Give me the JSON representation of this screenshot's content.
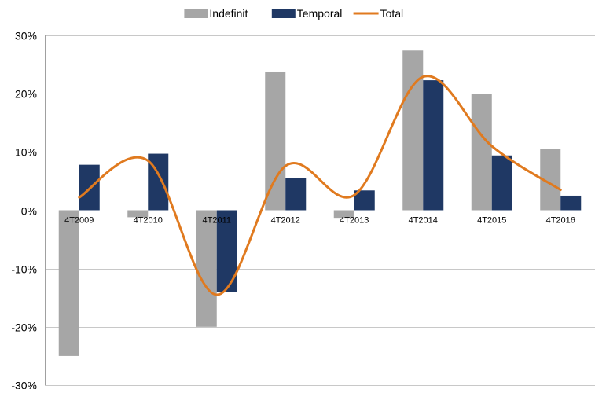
{
  "chart_data": {
    "type": "bar",
    "categories": [
      "4T2009",
      "4T2010",
      "4T2011",
      "4T2012",
      "4T2013",
      "4T2014",
      "4T2015",
      "4T2016"
    ],
    "series": [
      {
        "name": "Indefinit",
        "kind": "bar",
        "color": "#a6a6a6",
        "values": [
          -25.0,
          -1.2,
          -20.0,
          23.8,
          -1.3,
          27.4,
          20.0,
          10.5
        ]
      },
      {
        "name": "Temporal",
        "kind": "bar",
        "color": "#1f3864",
        "values": [
          7.8,
          9.7,
          -14.0,
          5.5,
          3.4,
          22.3,
          9.4,
          2.5
        ]
      },
      {
        "name": "Total",
        "kind": "line",
        "color": "#e07a1f",
        "values": [
          2.2,
          8.5,
          -14.5,
          7.6,
          2.6,
          22.9,
          11.0,
          3.5
        ]
      }
    ],
    "ylim": [
      -30,
      30
    ],
    "yticks": [
      -30,
      -20,
      -10,
      0,
      10,
      20,
      30
    ],
    "ytick_labels": [
      "-30%",
      "-20%",
      "-10%",
      "0%",
      "10%",
      "20%",
      "30%"
    ],
    "grid": true,
    "legend_position": "top-center",
    "line_smooth": true
  }
}
